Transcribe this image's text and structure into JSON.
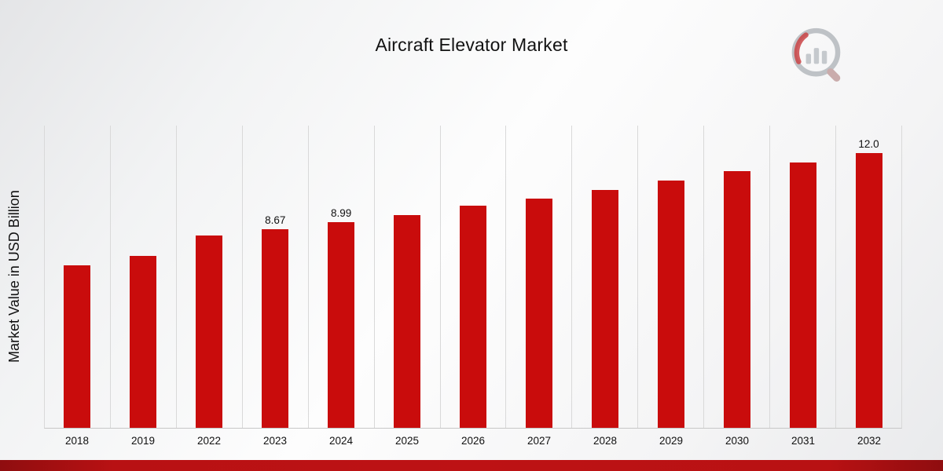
{
  "page": {
    "title": "Aircraft Elevator Market"
  },
  "chart_data": {
    "type": "bar",
    "title": "Aircraft Elevator Market",
    "xlabel": "",
    "ylabel": "Market Value in USD Billion",
    "categories": [
      "2018",
      "2019",
      "2022",
      "2023",
      "2024",
      "2025",
      "2026",
      "2027",
      "2028",
      "2029",
      "2030",
      "2031",
      "2032"
    ],
    "values": [
      7.1,
      7.5,
      8.4,
      8.67,
      8.99,
      9.3,
      9.7,
      10.0,
      10.4,
      10.8,
      11.2,
      11.6,
      12.0
    ],
    "data_labels": {
      "2023": "8.67",
      "2024": "8.99",
      "2032": "12.0"
    },
    "ylim": [
      0,
      13.2
    ],
    "grid": "vertical-separators-only",
    "legend": "none",
    "bar_color": "#C90C0C"
  },
  "colors": {
    "accent_red": "#C90C0C",
    "footer_stripe": "#B81113",
    "gridline": "#D9D9D9",
    "text": "#111111",
    "logo_gray": "#BCC0C4"
  },
  "icons": {
    "brand_logo": "magnifier-bar-chart-logo"
  }
}
